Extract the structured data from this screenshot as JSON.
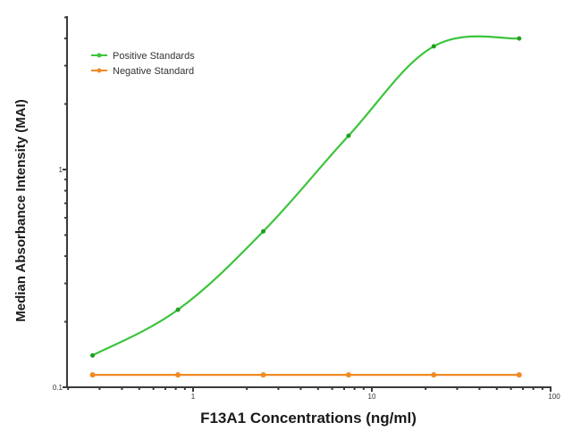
{
  "chart_data": {
    "type": "line",
    "title": "",
    "xlabel": "F13A1 Concentrations (ng/ml)",
    "ylabel": "Median Absorbance Intensity (MAI)",
    "xscale": "log",
    "yscale": "log",
    "xlim": [
      0.2,
      100
    ],
    "ylim": [
      0.1,
      5
    ],
    "x_tick_labels": [
      "1",
      "10",
      "100"
    ],
    "y_tick_labels": [
      "0.1",
      "1"
    ],
    "grid": false,
    "legend_position": "upper left",
    "series": [
      {
        "name": "Positive Standards",
        "color": "#3cc43c",
        "x": [
          0.274,
          0.823,
          2.47,
          7.41,
          22.2,
          66.7
        ],
        "values": [
          0.14,
          0.227,
          0.52,
          1.43,
          3.68,
          4.0
        ]
      },
      {
        "name": "Negative Standard",
        "color": "#f08a24",
        "x": [
          0.274,
          0.823,
          2.47,
          7.41,
          22.2,
          66.7
        ],
        "values": [
          0.114,
          0.114,
          0.114,
          0.114,
          0.114,
          0.114
        ]
      }
    ]
  },
  "legend": {
    "items": [
      {
        "label": "Positive Standards",
        "color": "#3cc43c"
      },
      {
        "label": "Negative Standard",
        "color": "#f08a24"
      }
    ]
  }
}
